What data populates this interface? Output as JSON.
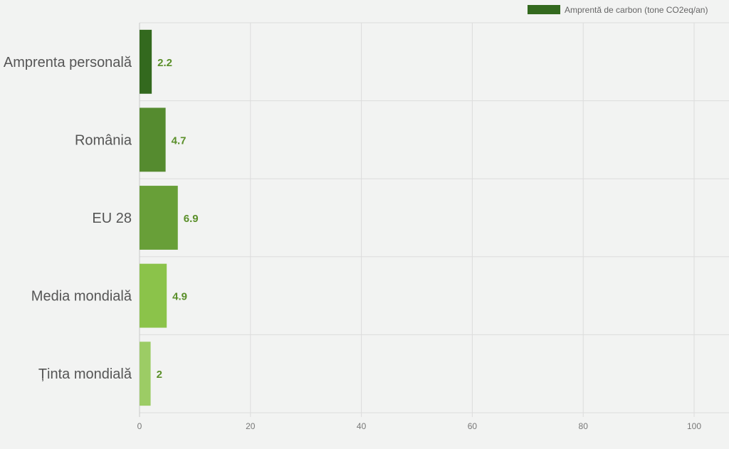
{
  "chart_data": {
    "type": "bar",
    "orientation": "horizontal",
    "categories": [
      "Amprenta personală",
      "România",
      "EU 28",
      "Media mondială",
      "Ținta mondială"
    ],
    "series": [
      {
        "name": "Amprentă de carbon (tone CO2eq/an)",
        "values": [
          2.2,
          4.7,
          6.9,
          4.9,
          2
        ]
      }
    ],
    "data_labels": [
      "2.2",
      "4.7",
      "6.9",
      "4.9",
      "2"
    ],
    "bar_colors": [
      "#33691e",
      "#558b2f",
      "#689f38",
      "#8bc34a",
      "#9ccc65"
    ],
    "data_label_color": "#5a8f29",
    "x_ticks": [
      0,
      20,
      40,
      60,
      80,
      100
    ],
    "xlim": [
      0,
      105
    ],
    "grid": true,
    "legend": {
      "position": "top-right",
      "color": "#33691e",
      "label": "Amprentă de carbon (tone CO2eq/an)"
    }
  }
}
